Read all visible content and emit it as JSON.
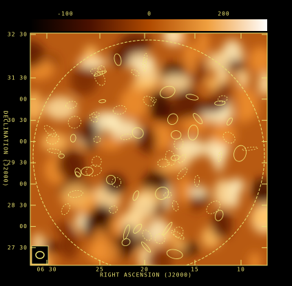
{
  "colorbar": {
    "ticks": [
      "-100",
      "0",
      "200"
    ]
  },
  "axes": {
    "x_label": "RIGHT ASCENSION (J2000)",
    "y_label": "DECLINATION (J2000)",
    "x_ticks": [
      "06 30",
      "25",
      "20",
      "15",
      "10"
    ],
    "y_ticks": [
      "32 30",
      "31 30",
      "00",
      "30 30",
      "00",
      "29 30",
      "00",
      "28 30",
      "00",
      "27 30"
    ]
  }
}
